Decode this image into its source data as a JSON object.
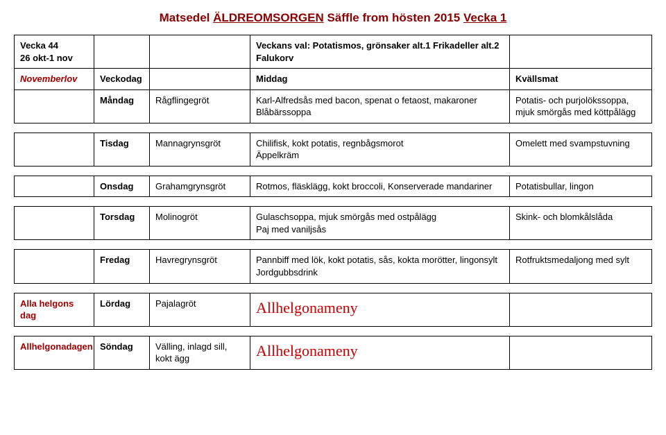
{
  "title": {
    "prefix": "Matsedel ",
    "under1": "ÄLDREOMSORGEN",
    "mid": " Säffle from hösten 2015 ",
    "under2": "Vecka 1"
  },
  "header_row": {
    "week_label": "Vecka 44",
    "date_range": "26 okt-1 nov",
    "veckans_val": "Veckans val: Potatismos, grönsaker alt.1 Frikadeller alt.2 Falukorv"
  },
  "subhead": {
    "note": "Novemberlov",
    "col2": "Veckodag",
    "col4": "Middag",
    "col5": "Kvällsmat"
  },
  "rows": [
    {
      "note": "",
      "day": "Måndag",
      "grot": "Rågflingegröt",
      "lunch": "Karl-Alfredsås med bacon, spenat o fetaost, makaroner\nBlåbärssoppa",
      "eve": "Potatis- och purjolökssoppa, mjuk smörgås med köttpålägg"
    },
    {
      "note": "",
      "day": "Tisdag",
      "grot": "Mannagrynsgröt",
      "lunch": "Chilifisk, kokt potatis, regnbågsmorot\nÄppelkräm",
      "eve": "Omelett med svampstuvning"
    },
    {
      "note": "",
      "day": "Onsdag",
      "grot": "Grahamgrynsgröt",
      "lunch": "Rotmos, fläsklägg, kokt broccoli, Konserverade mandariner",
      "eve": "Potatisbullar, lingon"
    },
    {
      "note": "",
      "day": "Torsdag",
      "grot": "Molinogröt",
      "lunch": "Gulaschsoppa, mjuk smörgås med ostpålägg\nPaj med vaniljsås",
      "eve": "Skink- och blomkålslåda"
    },
    {
      "note": "",
      "day": "Fredag",
      "grot": "Havregrynsgröt",
      "lunch": "Pannbiff med lök, kokt potatis, sås, kokta morötter, lingonsylt\nJordgubbsdrink",
      "eve": "Rotfruktsmedaljong med sylt"
    }
  ],
  "lordag": {
    "note": "Alla helgons dag",
    "day": "Lördag",
    "grot": "Pajalagröt",
    "lunch": "Allhelgonameny",
    "eve": ""
  },
  "sondag": {
    "note": "Allhelgonadagen",
    "day": "Söndag",
    "grot": "Välling, inlagd sill, kokt ägg",
    "lunch": "Allhelgonameny",
    "eve": ""
  }
}
